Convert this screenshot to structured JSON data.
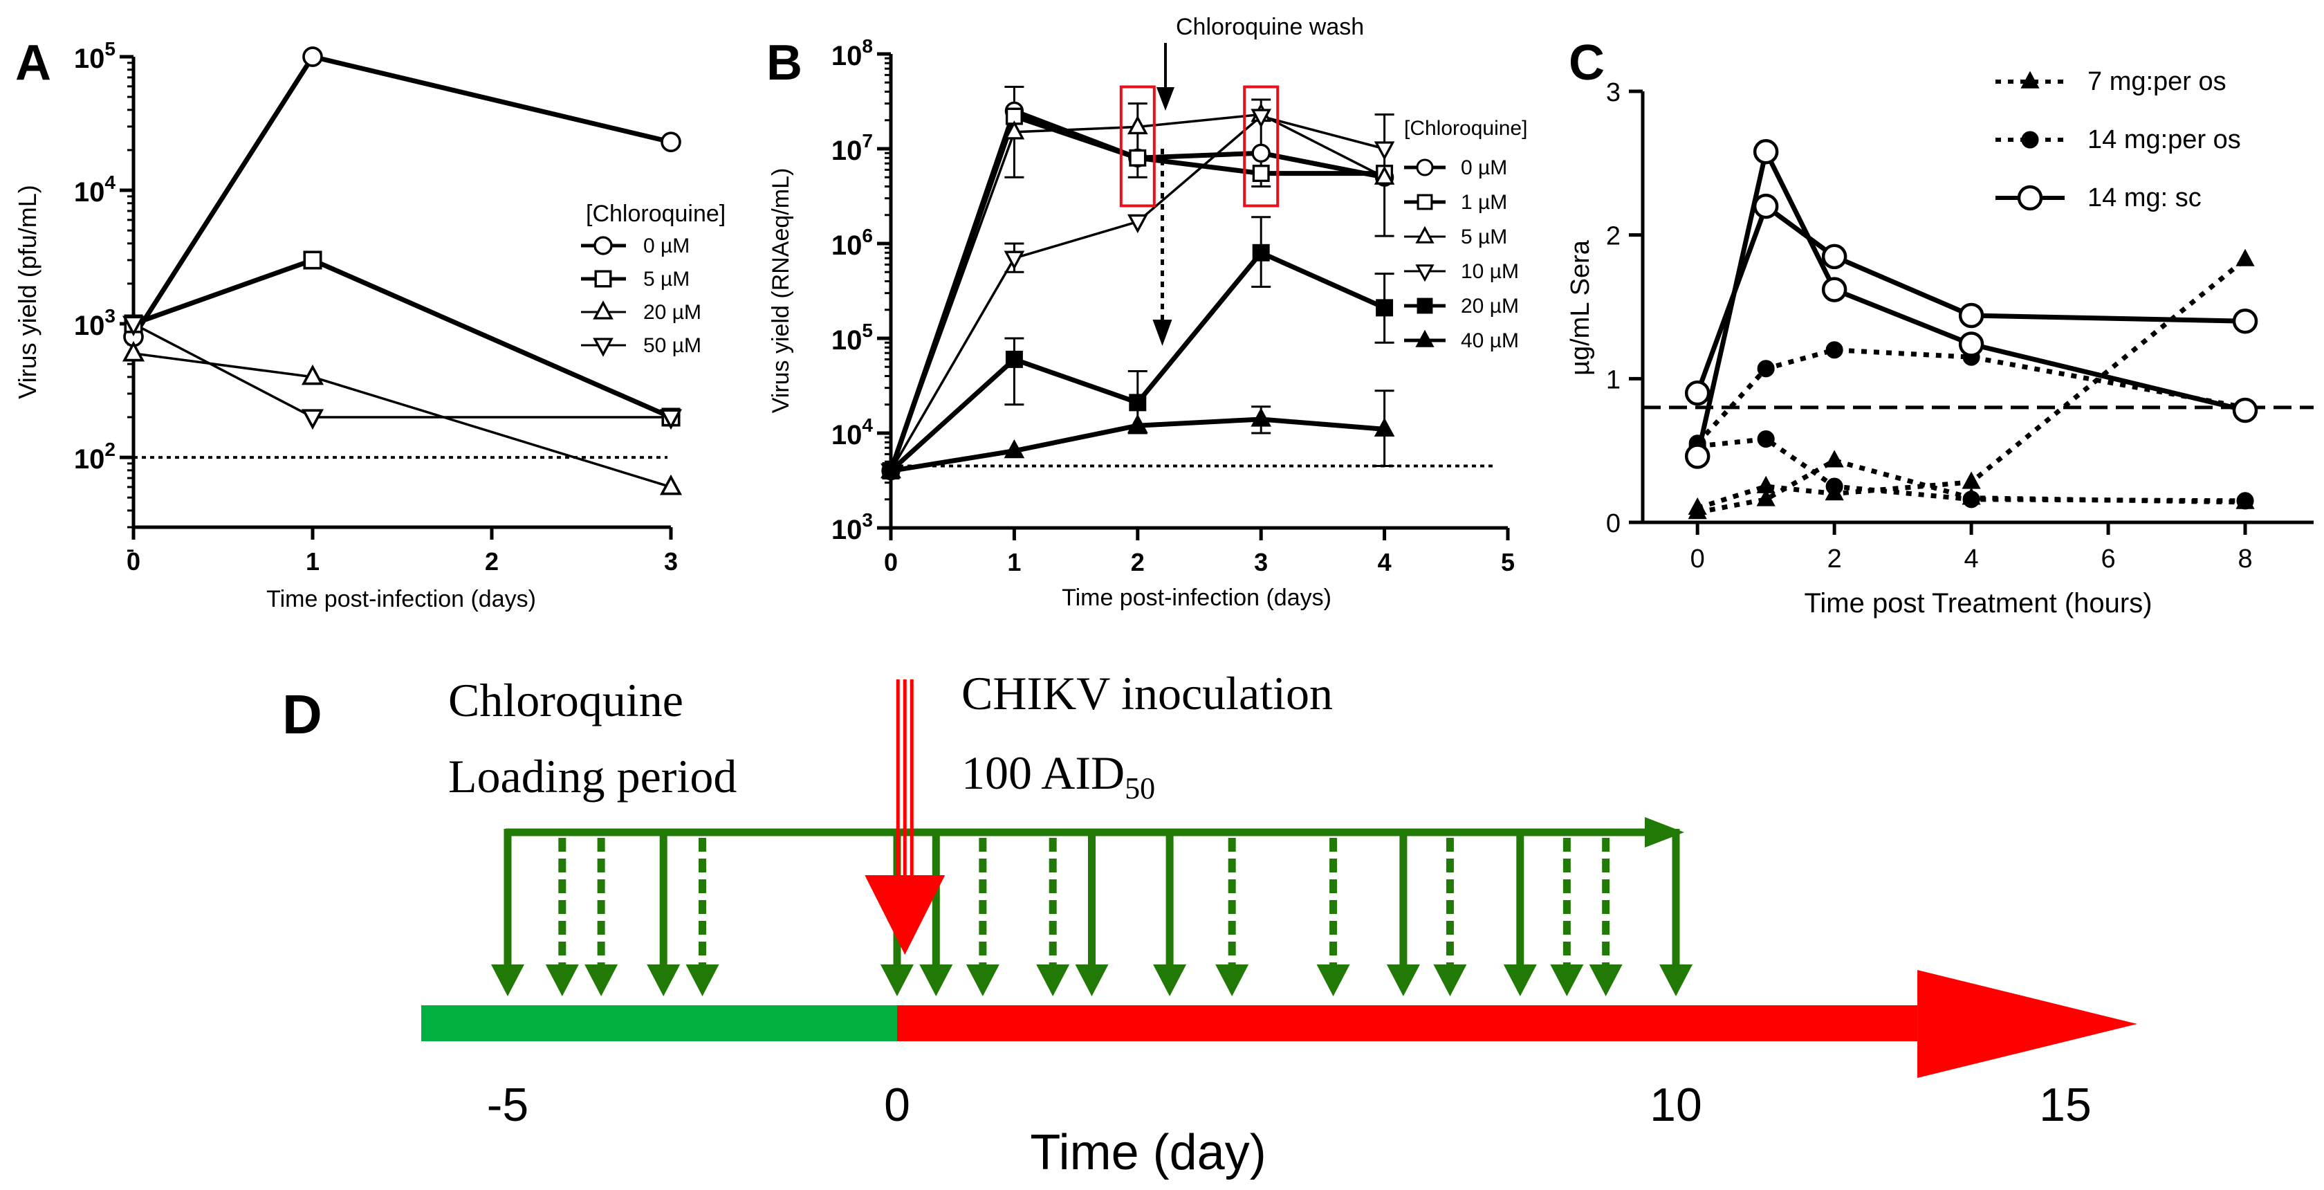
{
  "chart_data": [
    {
      "panel": "A",
      "type": "line",
      "yscale": "log",
      "title": "",
      "xlabel": "Time post-infection (days)",
      "ylabel": "Virus  yield  (pfu/mL)",
      "xlim": [
        0,
        3
      ],
      "ylim": [
        30,
        100000
      ],
      "xticks": [
        "0",
        "1",
        "2",
        "3"
      ],
      "ytick_values": [
        100,
        1000,
        10000,
        100000
      ],
      "yticks": [
        {
          "b": "10",
          "e": "2"
        },
        {
          "b": "10",
          "e": "3"
        },
        {
          "b": "10",
          "e": "4"
        },
        {
          "b": "10",
          "e": "5"
        }
      ],
      "legend_title": "[Chloroquine]",
      "legend_placement": "right",
      "detection_limit": 100,
      "series": [
        {
          "name": "0 µM",
          "marker": "circle-open",
          "lw": "thick",
          "x": [
            0,
            1,
            3
          ],
          "y": [
            800,
            100000,
            23000
          ]
        },
        {
          "name": "5 µM",
          "marker": "square-open",
          "lw": "thick",
          "x": [
            0,
            1,
            3
          ],
          "y": [
            1000,
            3000,
            200
          ]
        },
        {
          "name": "20 µM",
          "marker": "triangle-up-open",
          "lw": "thin",
          "x": [
            0,
            1,
            3
          ],
          "y": [
            600,
            400,
            60
          ]
        },
        {
          "name": "50 µM",
          "marker": "triangle-down-open",
          "lw": "thin",
          "x": [
            0,
            1,
            3
          ],
          "y": [
            1000,
            200,
            200
          ]
        }
      ]
    },
    {
      "panel": "B",
      "type": "line",
      "yscale": "log",
      "title": "",
      "xlabel": "Time post-infection (days)",
      "ylabel": "Virus  yield  (RNAeq/mL)",
      "xlim": [
        0,
        5
      ],
      "ylim": [
        1000,
        100000000
      ],
      "xticks": [
        "0",
        "1",
        "2",
        "3",
        "4",
        "5"
      ],
      "ytick_values": [
        1000,
        10000,
        100000,
        1000000,
        10000000,
        100000000
      ],
      "yticks": [
        {
          "b": "10",
          "e": "3"
        },
        {
          "b": "10",
          "e": "4"
        },
        {
          "b": "10",
          "e": "5"
        },
        {
          "b": "10",
          "e": "6"
        },
        {
          "b": "10",
          "e": "7"
        },
        {
          "b": "10",
          "e": "8"
        }
      ],
      "legend_title": "[Chloroquine]",
      "legend_placement": "right",
      "detection_limit": 4500,
      "annotation": "Chloroquine wash",
      "highlight_boxes_days": [
        2,
        3
      ],
      "series": [
        {
          "name": "0 µM",
          "marker": "circle-open",
          "lw": "thick",
          "x": [
            0,
            1,
            2,
            3,
            4
          ],
          "y": [
            4000,
            25000000,
            8000000,
            9000000,
            5000000
          ]
        },
        {
          "name": "1 µM",
          "marker": "square-open",
          "lw": "thick",
          "x": [
            0,
            1,
            2,
            3,
            4
          ],
          "y": [
            4000,
            22000000,
            8000000,
            5500000,
            5500000
          ]
        },
        {
          "name": "5 µM",
          "marker": "triangle-up-open",
          "lw": "thin",
          "x": [
            0,
            1,
            2,
            3,
            4
          ],
          "y": [
            4000,
            15000000,
            17000000,
            23000000,
            5000000
          ]
        },
        {
          "name": "10 µM",
          "marker": "triangle-down-open",
          "lw": "thin",
          "x": [
            0,
            1,
            2,
            3,
            4
          ],
          "y": [
            4000,
            700000,
            1700000,
            22000000,
            10000000
          ]
        },
        {
          "name": "20 µM",
          "marker": "square-filled",
          "lw": "thick",
          "x": [
            0,
            1,
            2,
            3,
            4
          ],
          "y": [
            4000,
            60000,
            21000,
            800000,
            210000
          ]
        },
        {
          "name": "40 µM",
          "marker": "triangle-up-filled",
          "lw": "thick",
          "x": [
            0,
            1,
            2,
            3,
            4
          ],
          "y": [
            4000,
            6500,
            12000,
            14000,
            11000
          ]
        }
      ],
      "error_bars": [
        {
          "x": 1,
          "lo": 5000000,
          "hi": 45000000
        },
        {
          "x": 1,
          "lo": 500000,
          "hi": 1000000
        },
        {
          "x": 1,
          "lo": 20000,
          "hi": 100000
        },
        {
          "x": 2,
          "lo": 5000000,
          "hi": 30000000
        },
        {
          "x": 2,
          "lo": 10000,
          "hi": 45000
        },
        {
          "x": 3,
          "lo": 4000000,
          "hi": 33000000
        },
        {
          "x": 3,
          "lo": 350000,
          "hi": 1900000
        },
        {
          "x": 3,
          "lo": 10000,
          "hi": 19000
        },
        {
          "x": 4,
          "lo": 1200000,
          "hi": 23000000
        },
        {
          "x": 4,
          "lo": 90000,
          "hi": 480000
        },
        {
          "x": 4,
          "lo": 4500,
          "hi": 28000
        }
      ]
    },
    {
      "panel": "C",
      "type": "line",
      "yscale": "linear",
      "title": "",
      "xlabel": "Time post Treatment (hours)",
      "ylabel": "µg/mL Sera",
      "xlim": [
        -0.8,
        9
      ],
      "ylim": [
        0,
        3
      ],
      "xticks": [
        "0",
        "2",
        "4",
        "6",
        "8"
      ],
      "xtick_values": [
        0,
        2,
        4,
        6,
        8
      ],
      "yticks": [
        "0",
        "1",
        "2",
        "3"
      ],
      "ytick_values": [
        0,
        1,
        2,
        3
      ],
      "legend_placement": "top-right",
      "threshold": 0.8,
      "series": [
        {
          "name": "7 mg:per os",
          "marker": "triangle-up-filled",
          "style": "dotted",
          "legend": true,
          "x": [
            0,
            1,
            2,
            4,
            8
          ],
          "y": [
            0.1,
            0.25,
            0.2,
            0.28,
            1.83
          ]
        },
        {
          "name": "7 mg:per os (b)",
          "marker": "triangle-up-filled",
          "style": "dotted",
          "legend": false,
          "x": [
            0,
            1,
            2,
            4,
            8
          ],
          "y": [
            0.07,
            0.16,
            0.43,
            0.17,
            0.14
          ]
        },
        {
          "name": "14 mg:per os",
          "marker": "circle-filled",
          "style": "dotted",
          "legend": true,
          "x": [
            0,
            1,
            2,
            4,
            8
          ],
          "y": [
            0.55,
            1.07,
            1.2,
            1.15,
            0.8
          ]
        },
        {
          "name": "14 mg:per os (b)",
          "marker": "circle-filled",
          "style": "dotted",
          "legend": false,
          "x": [
            0,
            1,
            2,
            4,
            8
          ],
          "y": [
            0.53,
            0.58,
            0.25,
            0.16,
            0.15
          ]
        },
        {
          "name": "14 mg: sc",
          "marker": "circle-open",
          "style": "solid",
          "legend": true,
          "x": [
            0,
            1,
            2,
            4,
            8
          ],
          "y": [
            0.9,
            2.2,
            1.85,
            1.44,
            1.4
          ]
        },
        {
          "name": "14 mg: sc (b)",
          "marker": "circle-open",
          "style": "solid",
          "legend": false,
          "x": [
            0,
            1,
            2,
            4,
            8
          ],
          "y": [
            0.46,
            2.58,
            1.62,
            1.24,
            0.78
          ]
        }
      ]
    },
    {
      "panel": "D",
      "type": "timeline",
      "title": "",
      "xlabel": "Time (day)",
      "xticks": [
        -5,
        0,
        10,
        15
      ],
      "xrange": [
        -5,
        15
      ],
      "label_left": [
        "Chloroquine",
        "Loading period"
      ],
      "label_right": [
        "CHIKV inoculation",
        "100 AID",
        "50"
      ],
      "dose_days_solid": [
        -5,
        -3,
        0,
        0.5,
        2.5,
        3.5,
        6.5,
        8
      ],
      "dose_days_dashed": [
        -4.3,
        -3.8,
        -2.5,
        1.1,
        2,
        4.3,
        5.6,
        7.1,
        8.6,
        9.1
      ],
      "dose_end_day": 10,
      "inoculation_day": 0.1,
      "colors": {
        "loading": "#00b140",
        "infection": "#ff0000",
        "dose": "#217a06",
        "inoculation": "#ff0000"
      }
    }
  ]
}
